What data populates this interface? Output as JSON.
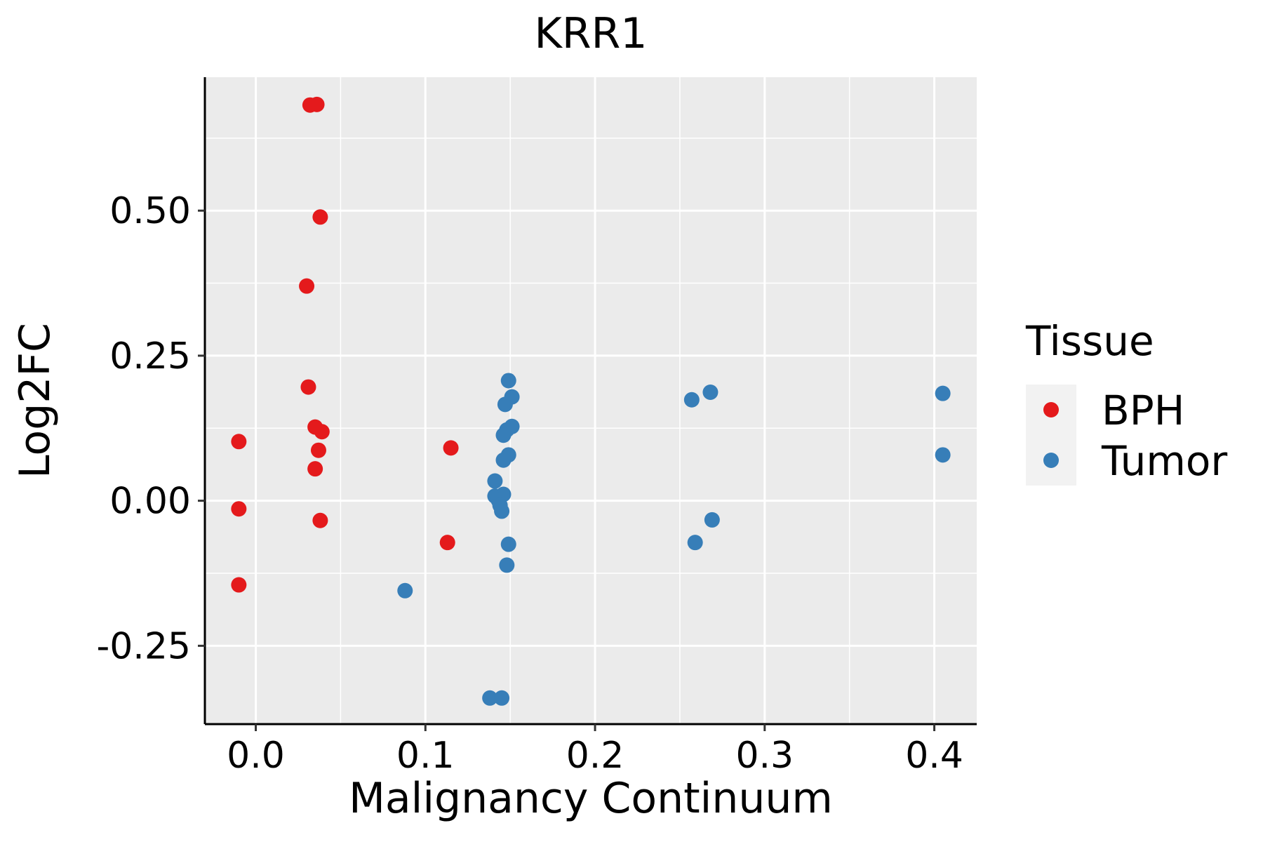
{
  "chart_data": {
    "type": "scatter",
    "title": "KRR1",
    "xlabel": "Malignancy Continuum",
    "ylabel": "Log2FC",
    "xlim": [
      -0.03,
      0.425
    ],
    "ylim": [
      -0.385,
      0.73
    ],
    "x_ticks": [
      0.0,
      0.1,
      0.2,
      0.3,
      0.4
    ],
    "x_tick_labels": [
      "0.0",
      "0.1",
      "0.2",
      "0.3",
      "0.4"
    ],
    "x_minor": [
      0.05,
      0.15,
      0.25,
      0.35
    ],
    "y_ticks": [
      -0.25,
      0.0,
      0.25,
      0.5
    ],
    "y_tick_labels": [
      "-0.25",
      "0.00",
      "0.25",
      "0.50"
    ],
    "y_minor": [
      -0.125,
      0.125,
      0.375,
      0.625
    ],
    "grid": true,
    "legend": {
      "title": "Tissue",
      "position": "right",
      "entries": [
        "BPH",
        "Tumor"
      ]
    },
    "colors": {
      "BPH": "#E41A1C",
      "Tumor": "#377EB8",
      "panel": "#EBEBEB",
      "grid": "#FFFFFF",
      "legend_key": "#F2F2F2"
    },
    "series": [
      {
        "name": "BPH",
        "points": [
          {
            "x": 0.032,
            "y": 0.682
          },
          {
            "x": 0.036,
            "y": 0.683
          },
          {
            "x": 0.038,
            "y": 0.489
          },
          {
            "x": 0.03,
            "y": 0.37
          },
          {
            "x": 0.031,
            "y": 0.196
          },
          {
            "x": 0.035,
            "y": 0.127
          },
          {
            "x": 0.039,
            "y": 0.119
          },
          {
            "x": 0.037,
            "y": 0.087
          },
          {
            "x": 0.035,
            "y": 0.055
          },
          {
            "x": 0.038,
            "y": -0.034
          },
          {
            "x": -0.01,
            "y": 0.102
          },
          {
            "x": -0.01,
            "y": -0.014
          },
          {
            "x": -0.01,
            "y": -0.145
          },
          {
            "x": 0.115,
            "y": 0.091
          },
          {
            "x": 0.113,
            "y": -0.072
          }
        ]
      },
      {
        "name": "Tumor",
        "points": [
          {
            "x": 0.149,
            "y": 0.207
          },
          {
            "x": 0.151,
            "y": 0.179
          },
          {
            "x": 0.147,
            "y": 0.166
          },
          {
            "x": 0.151,
            "y": 0.128
          },
          {
            "x": 0.148,
            "y": 0.122
          },
          {
            "x": 0.146,
            "y": 0.113
          },
          {
            "x": 0.149,
            "y": 0.079
          },
          {
            "x": 0.146,
            "y": 0.07
          },
          {
            "x": 0.141,
            "y": 0.034
          },
          {
            "x": 0.146,
            "y": 0.011
          },
          {
            "x": 0.141,
            "y": 0.008
          },
          {
            "x": 0.143,
            "y": 0.001
          },
          {
            "x": 0.144,
            "y": -0.008
          },
          {
            "x": 0.145,
            "y": -0.018
          },
          {
            "x": 0.149,
            "y": -0.075
          },
          {
            "x": 0.148,
            "y": -0.111
          },
          {
            "x": 0.088,
            "y": -0.155
          },
          {
            "x": 0.138,
            "y": -0.34
          },
          {
            "x": 0.145,
            "y": -0.34
          },
          {
            "x": 0.257,
            "y": 0.174
          },
          {
            "x": 0.268,
            "y": 0.187
          },
          {
            "x": 0.269,
            "y": -0.033
          },
          {
            "x": 0.259,
            "y": -0.072
          },
          {
            "x": 0.405,
            "y": 0.185
          },
          {
            "x": 0.405,
            "y": 0.079
          }
        ]
      }
    ]
  }
}
